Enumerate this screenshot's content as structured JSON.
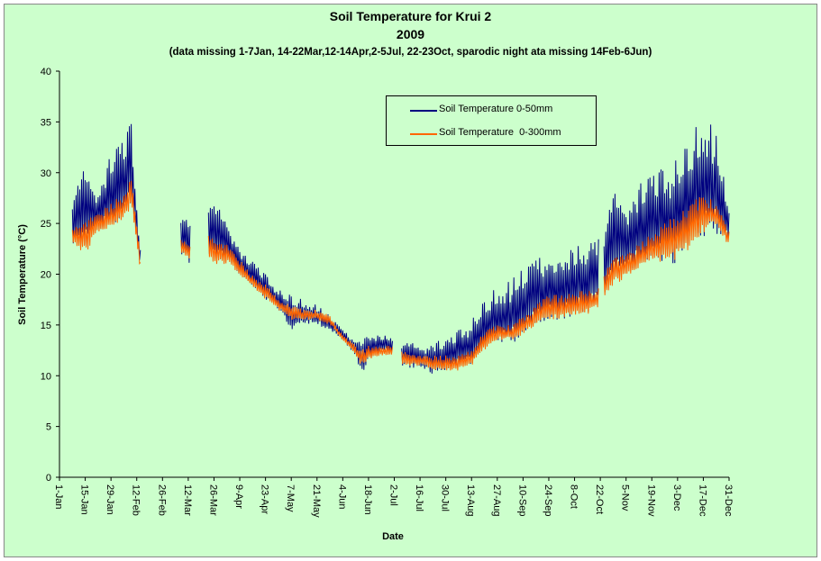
{
  "chart_data": {
    "type": "line",
    "title": "Soil Temperature for Krui 2",
    "subtitle": "2009",
    "note": "(data missing 1-7Jan, 14-22Mar,12-14Apr,2-5Jul, 22-23Oct, sparodic night ata missing 14Feb-6Jun)",
    "xlabel": "Date",
    "ylabel": "Soil Temperature (°C)",
    "ylim": [
      0,
      40
    ],
    "yticks": [
      "0",
      "5",
      "10",
      "15",
      "20",
      "25",
      "30",
      "35",
      "40"
    ],
    "xticks": [
      "1-Jan",
      "15-Jan",
      "29-Jan",
      "12-Feb",
      "26-Feb",
      "12-Mar",
      "26-Mar",
      "9-Apr",
      "23-Apr",
      "7-May",
      "21-May",
      "4-Jun",
      "18-Jun",
      "2-Jul",
      "16-Jul",
      "30-Jul",
      "13-Aug",
      "27-Aug",
      "10-Sep",
      "24-Sep",
      "8-Oct",
      "22-Oct",
      "5-Nov",
      "19-Nov",
      "3-Dec",
      "17-Dec",
      "31-Dec"
    ],
    "legend_position": "top-center",
    "grid": false,
    "series": [
      {
        "name": "Soil Temperature 0-50mm",
        "color": "#000080",
        "envelope": {
          "x": [
            "2009-01-08",
            "2009-01-15",
            "2009-01-22",
            "2009-01-29",
            "2009-02-05",
            "2009-02-09",
            "2009-02-12",
            "2009-02-14",
            "null",
            "2009-03-08",
            "2009-03-13",
            "null",
            "2009-03-23",
            "2009-03-26",
            "2009-04-02",
            "2009-04-11",
            "2009-04-15",
            "2009-04-23",
            "2009-04-30",
            "2009-05-07",
            "2009-05-14",
            "2009-05-21",
            "2009-05-28",
            "2009-06-04",
            "2009-06-11",
            "2009-06-14",
            "2009-06-18",
            "2009-06-25",
            "2009-07-01",
            "null",
            "2009-07-06",
            "2009-07-16",
            "2009-07-23",
            "2009-07-30",
            "2009-08-06",
            "2009-08-13",
            "2009-08-20",
            "2009-08-27",
            "2009-09-03",
            "2009-09-10",
            "2009-09-17",
            "2009-09-24",
            "2009-10-01",
            "2009-10-08",
            "2009-10-15",
            "2009-10-21",
            "null",
            "2009-10-24",
            "2009-10-29",
            "2009-11-05",
            "2009-11-12",
            "2009-11-19",
            "2009-11-26",
            "2009-12-03",
            "2009-12-10",
            "2009-12-17",
            "2009-12-24",
            "2009-12-31"
          ],
          "max": [
            28,
            30.5,
            28.5,
            32,
            33.5,
            35,
            27,
            23,
            null,
            26.5,
            25,
            null,
            28,
            27,
            25.5,
            22,
            21.5,
            20,
            18.5,
            18,
            17.5,
            17,
            16,
            14.5,
            13.5,
            14,
            14,
            14,
            14,
            null,
            13.5,
            13,
            13.5,
            13.5,
            14.5,
            15.5,
            17.5,
            19,
            19.5,
            21,
            21.5,
            22,
            21.5,
            23,
            23,
            24,
            null,
            25,
            28,
            27.5,
            29,
            30,
            30.5,
            31.5,
            33.5,
            36.5,
            34,
            27
          ],
          "min": [
            23,
            22.5,
            24,
            24.5,
            25.5,
            27,
            23,
            20,
            null,
            22,
            21,
            null,
            22,
            21.5,
            21,
            19.5,
            19,
            17.5,
            16.5,
            14,
            15,
            15,
            14.5,
            13.5,
            12,
            10,
            11.5,
            12.5,
            12,
            null,
            11,
            10.5,
            10,
            10.5,
            11,
            11,
            12,
            13,
            13,
            14,
            15,
            15.5,
            15.5,
            16,
            16,
            17,
            null,
            18,
            19.5,
            19.5,
            20.5,
            21.5,
            21,
            20.5,
            21.5,
            23,
            24,
            23.5
          ]
        }
      },
      {
        "name": "Soil Temperature  0-300mm",
        "color": "#ff6600",
        "envelope": {
          "x": [
            "2009-01-08",
            "2009-01-15",
            "2009-01-22",
            "2009-01-29",
            "2009-02-05",
            "2009-02-09",
            "2009-02-12",
            "2009-02-14",
            "null",
            "2009-03-08",
            "2009-03-13",
            "null",
            "2009-03-23",
            "2009-03-26",
            "2009-04-02",
            "2009-04-11",
            "2009-04-15",
            "2009-04-23",
            "2009-04-30",
            "2009-05-07",
            "2009-05-14",
            "2009-05-21",
            "2009-05-28",
            "2009-06-04",
            "2009-06-11",
            "2009-06-14",
            "2009-06-18",
            "2009-06-25",
            "2009-07-01",
            "null",
            "2009-07-06",
            "2009-07-16",
            "2009-07-23",
            "2009-07-30",
            "2009-08-06",
            "2009-08-13",
            "2009-08-20",
            "2009-08-27",
            "2009-09-03",
            "2009-09-10",
            "2009-09-17",
            "2009-09-24",
            "2009-10-01",
            "2009-10-08",
            "2009-10-15",
            "2009-10-21",
            "null",
            "2009-10-24",
            "2009-10-29",
            "2009-11-05",
            "2009-11-12",
            "2009-11-19",
            "2009-11-26",
            "2009-12-03",
            "2009-12-10",
            "2009-12-17",
            "2009-12-24",
            "2009-12-31"
          ],
          "max": [
            24.5,
            25.5,
            26,
            27,
            28,
            29.5,
            25,
            21.5,
            null,
            23.5,
            23,
            null,
            24,
            23.5,
            23,
            21,
            20,
            19,
            17.5,
            17,
            16.5,
            16.5,
            16,
            14,
            13,
            12.5,
            13,
            13,
            13,
            null,
            12.5,
            12,
            12,
            12,
            12,
            12.5,
            14.5,
            15,
            15,
            16,
            17,
            18,
            18,
            18.5,
            18.5,
            19,
            null,
            20,
            22,
            22,
            23,
            24,
            25,
            26,
            27,
            28,
            27,
            24.5
          ],
          "min": [
            23,
            22,
            24,
            24.5,
            25.5,
            26.5,
            23,
            20,
            null,
            22,
            21.5,
            null,
            21.5,
            21,
            21,
            19.5,
            19,
            17.5,
            16.5,
            15.5,
            15.5,
            15.5,
            15,
            13.5,
            12,
            11,
            11.5,
            12,
            12,
            null,
            11,
            11,
            10.5,
            10.5,
            10.5,
            11,
            12.5,
            13.5,
            13.5,
            14,
            15,
            15.5,
            15.5,
            16,
            16,
            16.5,
            null,
            17.5,
            19,
            19.5,
            20.5,
            21.5,
            21,
            21.5,
            22.5,
            24,
            25,
            22.5
          ]
        }
      }
    ]
  }
}
